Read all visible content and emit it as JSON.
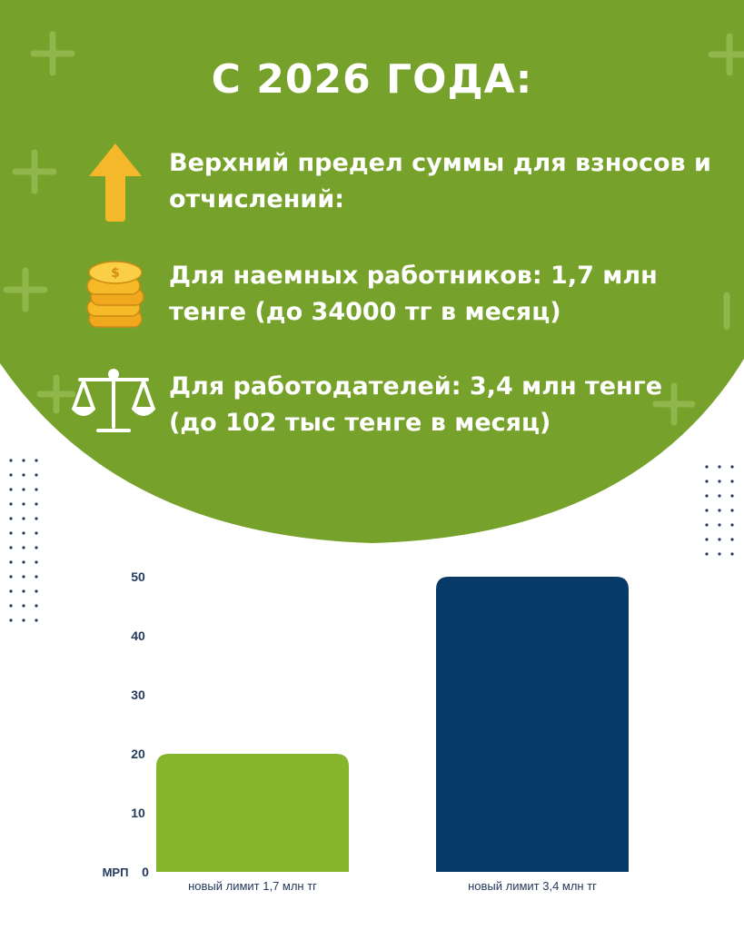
{
  "heading": "С 2026 ГОДА:",
  "rows": [
    {
      "icon": "up-arrow-icon",
      "text": "Верхний предел суммы для взносов и отчислений:"
    },
    {
      "icon": "coins-icon",
      "text": "Для наемных работников: 1,7 млн тенге (до 34000 тг в месяц)"
    },
    {
      "icon": "scales-icon",
      "text": "Для работодателей: 3,4 млн тенге (до 102 тыс тенге в месяц)"
    }
  ],
  "colors": {
    "green_background": "#76a12a",
    "bar_green": "#84b52a",
    "bar_navy": "#073a66",
    "arrow_yellow": "#f5b82a",
    "axis_text": "#243a5e"
  },
  "chart_data": {
    "type": "bar",
    "categories": [
      "новый лимит 1,7 млн тг",
      "новый лимит 3,4 млн тг"
    ],
    "values": [
      20,
      50
    ],
    "ylabel": "МРП",
    "yticks": [
      0,
      10,
      20,
      30,
      40,
      50
    ],
    "ylim": [
      0,
      50
    ],
    "grid": false
  }
}
